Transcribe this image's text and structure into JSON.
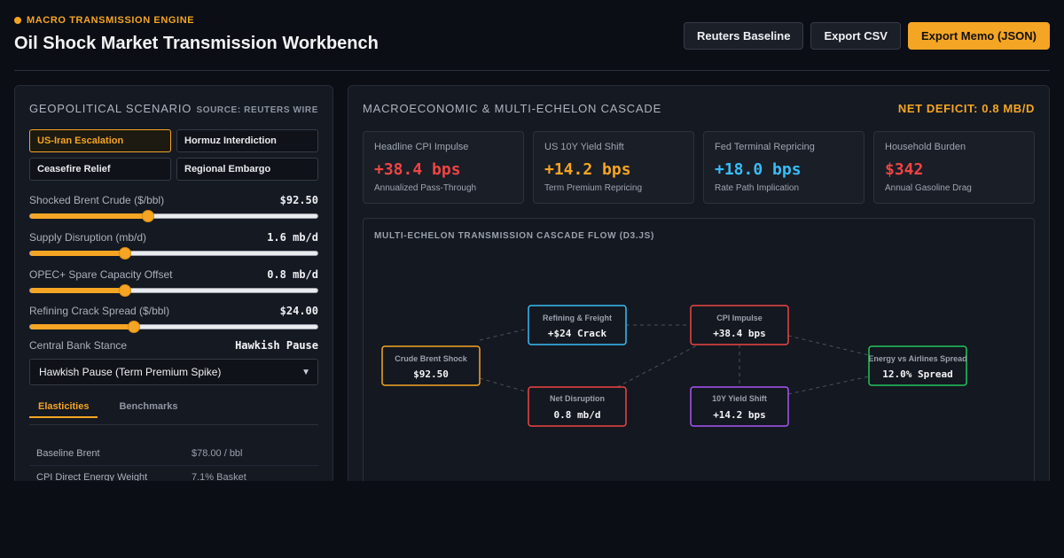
{
  "header": {
    "eyebrow": "MACRO TRANSMISSION ENGINE",
    "title": "Oil Shock Market Transmission Workbench",
    "buttons": {
      "baseline": "Reuters Baseline",
      "export_csv": "Export CSV",
      "export_memo": "Export Memo (JSON)"
    }
  },
  "scenario_panel": {
    "title": "GEOPOLITICAL SCENARIO",
    "source": "SOURCE: REUTERS WIRE",
    "scenarios": [
      {
        "label": "US-Iran Escalation",
        "active": true
      },
      {
        "label": "Hormuz Interdiction",
        "active": false
      },
      {
        "label": "Ceasefire Relief",
        "active": false
      },
      {
        "label": "Regional Embargo",
        "active": false
      }
    ],
    "sliders": [
      {
        "label": "Shocked Brent Crude ($/bbl)",
        "value": "$92.50",
        "level": 0.41
      },
      {
        "label": "Supply Disruption (mb/d)",
        "value": "1.6 mb/d",
        "level": 0.33
      },
      {
        "label": "OPEC+ Spare Capacity Offset",
        "value": "0.8 mb/d",
        "level": 0.33
      },
      {
        "label": "Refining Crack Spread ($/bbl)",
        "value": "$24.00",
        "level": 0.36
      }
    ],
    "stance": {
      "label": "Central Bank Stance",
      "value": "Hawkish Pause",
      "selected_option": "Hawkish Pause (Term Premium Spike)"
    },
    "tabs": [
      {
        "label": "Elasticities",
        "active": true
      },
      {
        "label": "Benchmarks",
        "active": false
      }
    ],
    "table": [
      {
        "key": "Baseline Brent",
        "value": "$78.00 / bbl"
      },
      {
        "key": "CPI Direct Energy Weight",
        "value": "7.1% Basket"
      }
    ]
  },
  "cascade_panel": {
    "title": "MACROECONOMIC & MULTI-ECHELON CASCADE",
    "deficit": "NET DEFICIT: 0.8 MB/D",
    "kpis": [
      {
        "label": "Headline CPI Impulse",
        "value": "+38.4 bps",
        "sub": "Annualized Pass-Through",
        "color": "#ef4444"
      },
      {
        "label": "US 10Y Yield Shift",
        "value": "+14.2 bps",
        "sub": "Term Premium Repricing",
        "color": "#f5a524"
      },
      {
        "label": "Fed Terminal Repricing",
        "value": "+18.0 bps",
        "sub": "Rate Path Implication",
        "color": "#38bdf8"
      },
      {
        "label": "Household Burden",
        "value": "$342",
        "sub": "Annual Gasoline Drag",
        "color": "#ef4444"
      }
    ],
    "flow": {
      "title": "MULTI-ECHELON TRANSMISSION CASCADE FLOW (D3.JS)",
      "nodes": [
        {
          "id": "brent",
          "label": "Crude Brent Shock",
          "value": "$92.50",
          "color": "#f5a524"
        },
        {
          "id": "refining",
          "label": "Refining & Freight",
          "value": "+$24 Crack",
          "color": "#38bdf8"
        },
        {
          "id": "disruption",
          "label": "Net Disruption",
          "value": "0.8 mb/d",
          "color": "#ef4444"
        },
        {
          "id": "cpi",
          "label": "CPI Impulse",
          "value": "+38.4 bps",
          "color": "#ef4444"
        },
        {
          "id": "yield",
          "label": "10Y Yield Shift",
          "value": "+14.2 bps",
          "color": "#a855f7"
        },
        {
          "id": "spread",
          "label": "Energy vs Airlines Spread",
          "value": "12.0% Spread",
          "color": "#22c55e"
        }
      ]
    }
  }
}
